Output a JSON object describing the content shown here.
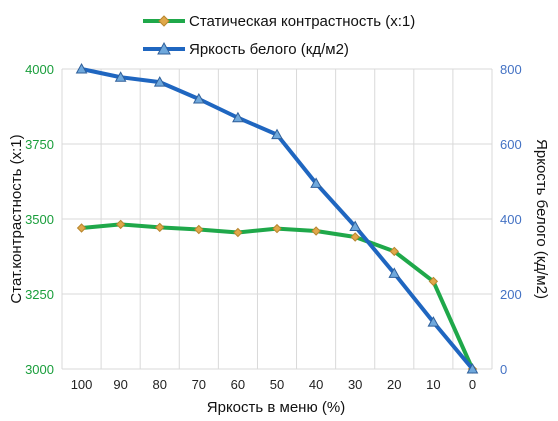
{
  "chart_data": {
    "type": "line",
    "x": [
      100,
      90,
      80,
      70,
      60,
      50,
      40,
      30,
      20,
      10,
      0
    ],
    "xlabel": "Яркость в меню (%)",
    "ylabel_left": "Стат.контрастность  (x:1)",
    "ylabel_right": "Яркость белого (кд/м2)",
    "ylim_left": [
      3000,
      4000
    ],
    "ylim_right": [
      0,
      800
    ],
    "yticks_left": [
      3000,
      3250,
      3500,
      3750,
      4000
    ],
    "yticks_right": [
      0,
      200,
      400,
      600,
      800
    ],
    "grid": true,
    "legend_position": "top",
    "series": [
      {
        "name": "Статическая контрастность (x:1)",
        "axis": "left",
        "color": "#1fa84a",
        "marker": "diamond",
        "marker_color": "#e0a84a",
        "values": [
          3470,
          3482,
          3472,
          3465,
          3455,
          3468,
          3460,
          3440,
          3392,
          3292,
          3000
        ]
      },
      {
        "name": "Яркость белого (кд/м2)",
        "axis": "right",
        "color": "#1f66c0",
        "marker": "triangle",
        "marker_color": "#6fa8dc",
        "values": [
          800,
          778,
          765,
          720,
          670,
          625,
          495,
          380,
          255,
          125,
          0
        ]
      }
    ]
  }
}
